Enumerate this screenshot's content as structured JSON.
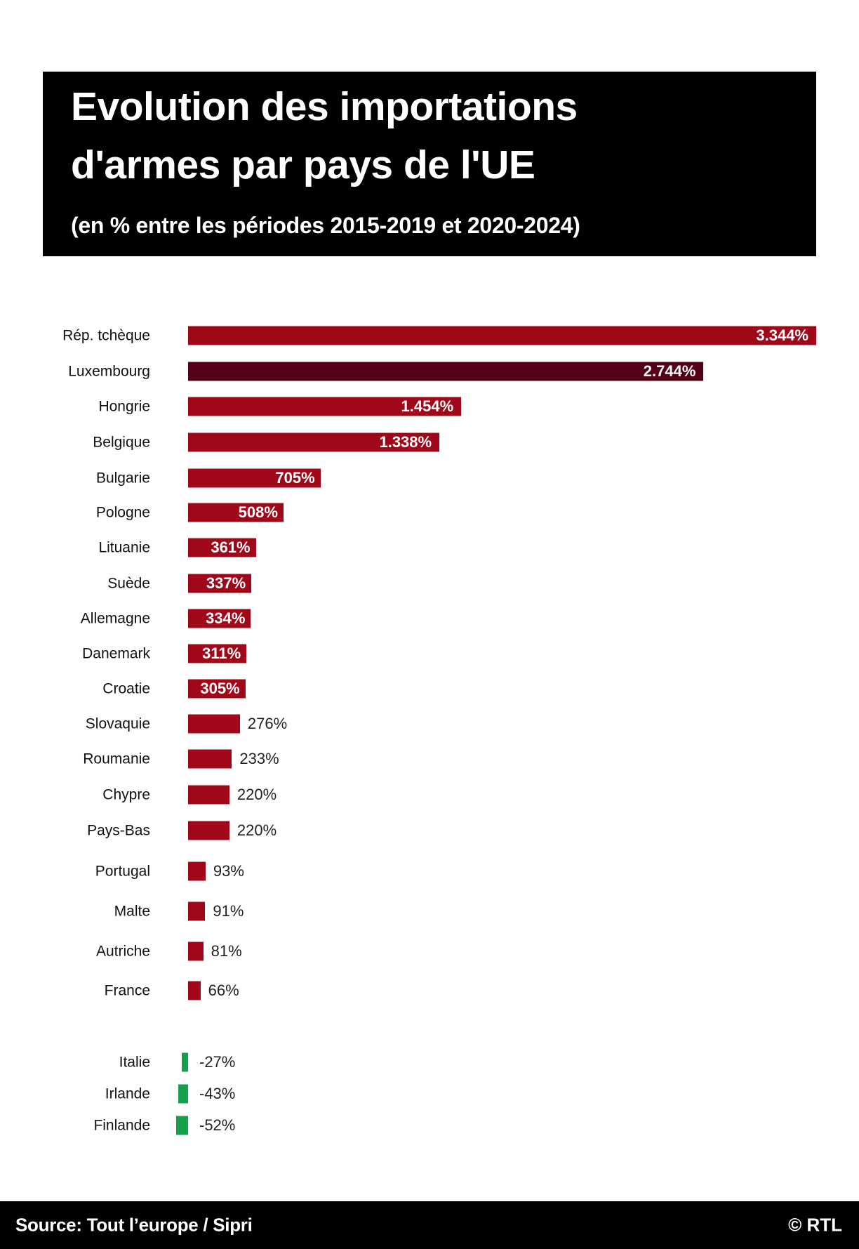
{
  "header": {
    "title_line1": "Evolution des importations",
    "title_line2": "d'armes par pays de l'UE",
    "subtitle": "(en % entre les périodes 2015-2019 et 2020-2024)"
  },
  "footer": {
    "source": "Source: Tout l’europe /  Sipri",
    "credit": "© RTL"
  },
  "colors": {
    "positive": "#a0081a",
    "highlight": "#560018",
    "negative": "#14a04c"
  },
  "chart_data": {
    "type": "bar",
    "orientation": "horizontal",
    "title": "Evolution des importations d'armes par pays de l'UE",
    "subtitle": "(en % entre les périodes 2015-2019 et 2020-2024)",
    "xlabel": "",
    "ylabel": "",
    "unit": "%",
    "grid": false,
    "legend": "none",
    "highlight": "Luxembourg",
    "categories": [
      "Rép. tchèque",
      "Luxembourg",
      "Hongrie",
      "Belgique",
      "Bulgarie",
      "Pologne",
      "Lituanie",
      "Suède",
      "Allemagne",
      "Danemark",
      "Croatie",
      "Slovaquie",
      "Roumanie",
      "Chypre",
      "Pays-Bas",
      "Portugal",
      "Malte",
      "Autriche",
      "France",
      "Italie",
      "Irlande",
      "Finlande"
    ],
    "values": [
      3344,
      2744,
      1454,
      1338,
      705,
      508,
      361,
      337,
      334,
      311,
      305,
      276,
      233,
      220,
      220,
      93,
      91,
      81,
      66,
      -27,
      -43,
      -52
    ],
    "labels": [
      "3.344%",
      "2.744%",
      "1.454%",
      "1.338%",
      "705%",
      "508%",
      "361%",
      "337%",
      "334%",
      "311%",
      "305%",
      "276%",
      "233%",
      "220%",
      "220%",
      "93%",
      "91%",
      "81%",
      "66%",
      "-27%",
      "-43%",
      "-52%"
    ],
    "label_inside": [
      true,
      true,
      true,
      true,
      true,
      true,
      true,
      true,
      true,
      true,
      true,
      false,
      false,
      false,
      false,
      false,
      false,
      false,
      false,
      false,
      false,
      false
    ]
  }
}
